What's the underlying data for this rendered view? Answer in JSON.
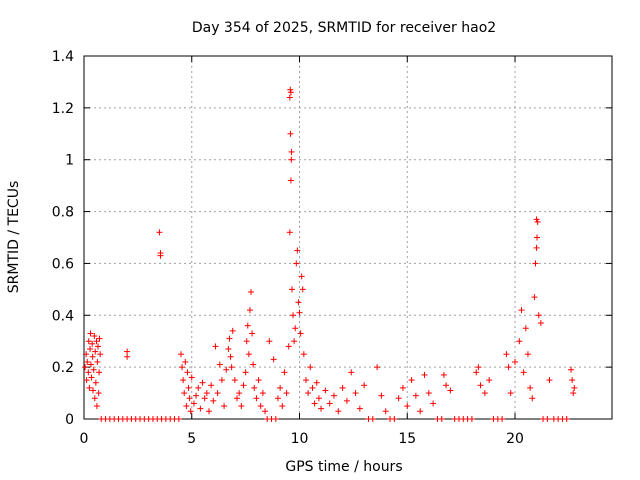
{
  "chart_data": {
    "type": "scatter",
    "title": "Day 354 of 2025, SRMTID for receiver hao2",
    "xlabel": "GPS time / hours",
    "ylabel": "SRMTID / TECUs",
    "xlim": [
      0,
      24.5
    ],
    "ylim": [
      0,
      1.4
    ],
    "xticks": [
      0,
      5,
      10,
      15,
      20
    ],
    "xtick_labels": [
      "0",
      "5",
      "10",
      "15",
      "20"
    ],
    "yticks": [
      0,
      0.2,
      0.4,
      0.6,
      0.8,
      1.0,
      1.2,
      1.4
    ],
    "ytick_labels": [
      "0",
      "0.2",
      "0.4",
      "0.6",
      "0.8",
      "1",
      "1.2",
      "1.4"
    ],
    "grid": true,
    "marker": "plus",
    "color": "#ff0000",
    "series": [
      {
        "name": "hao2",
        "points": [
          [
            0.05,
            0.2
          ],
          [
            0.1,
            0.25
          ],
          [
            0.12,
            0.15
          ],
          [
            0.15,
            0.22
          ],
          [
            0.2,
            0.18
          ],
          [
            0.22,
            0.3
          ],
          [
            0.25,
            0.12
          ],
          [
            0.28,
            0.27
          ],
          [
            0.3,
            0.33
          ],
          [
            0.32,
            0.21
          ],
          [
            0.35,
            0.16
          ],
          [
            0.38,
            0.29
          ],
          [
            0.4,
            0.24
          ],
          [
            0.42,
            0.11
          ],
          [
            0.45,
            0.19
          ],
          [
            0.48,
            0.32
          ],
          [
            0.5,
            0.08
          ],
          [
            0.52,
            0.26
          ],
          [
            0.55,
            0.14
          ],
          [
            0.58,
            0.3
          ],
          [
            0.6,
            0.05
          ],
          [
            0.62,
            0.22
          ],
          [
            0.65,
            0.28
          ],
          [
            0.68,
            0.1
          ],
          [
            0.7,
            0.18
          ],
          [
            0.72,
            0.31
          ],
          [
            0.75,
            0.25
          ],
          [
            0.8,
            0.0
          ],
          [
            1.0,
            0.0
          ],
          [
            1.2,
            0.0
          ],
          [
            1.4,
            0.0
          ],
          [
            1.6,
            0.0
          ],
          [
            1.8,
            0.0
          ],
          [
            2.0,
            0.0
          ],
          [
            2.2,
            0.0
          ],
          [
            2.4,
            0.0
          ],
          [
            2.6,
            0.0
          ],
          [
            2.8,
            0.0
          ],
          [
            3.0,
            0.0
          ],
          [
            3.2,
            0.0
          ],
          [
            3.4,
            0.0
          ],
          [
            3.6,
            0.0
          ],
          [
            3.8,
            0.0
          ],
          [
            4.0,
            0.0
          ],
          [
            4.2,
            0.0
          ],
          [
            4.4,
            0.0
          ],
          [
            2.0,
            0.24
          ],
          [
            2.0,
            0.26
          ],
          [
            3.5,
            0.72
          ],
          [
            3.55,
            0.64
          ],
          [
            3.55,
            0.63
          ],
          [
            4.5,
            0.25
          ],
          [
            4.55,
            0.2
          ],
          [
            4.6,
            0.15
          ],
          [
            4.65,
            0.1
          ],
          [
            4.7,
            0.22
          ],
          [
            4.75,
            0.05
          ],
          [
            4.8,
            0.18
          ],
          [
            4.85,
            0.12
          ],
          [
            4.9,
            0.08
          ],
          [
            4.95,
            0.03
          ],
          [
            5.0,
            0.16
          ],
          [
            5.1,
            0.06
          ],
          [
            5.2,
            0.09
          ],
          [
            5.3,
            0.12
          ],
          [
            5.4,
            0.04
          ],
          [
            5.5,
            0.14
          ],
          [
            5.6,
            0.08
          ],
          [
            5.7,
            0.1
          ],
          [
            5.8,
            0.03
          ],
          [
            5.9,
            0.13
          ],
          [
            6.0,
            0.07
          ],
          [
            6.1,
            0.28
          ],
          [
            6.2,
            0.1
          ],
          [
            6.3,
            0.21
          ],
          [
            6.4,
            0.15
          ],
          [
            6.5,
            0.05
          ],
          [
            6.6,
            0.19
          ],
          [
            6.7,
            0.27
          ],
          [
            6.75,
            0.31
          ],
          [
            6.8,
            0.24
          ],
          [
            6.85,
            0.2
          ],
          [
            6.9,
            0.34
          ],
          [
            7.0,
            0.15
          ],
          [
            7.1,
            0.08
          ],
          [
            7.2,
            0.1
          ],
          [
            7.3,
            0.05
          ],
          [
            7.4,
            0.13
          ],
          [
            7.5,
            0.18
          ],
          [
            7.55,
            0.3
          ],
          [
            7.6,
            0.36
          ],
          [
            7.65,
            0.25
          ],
          [
            7.7,
            0.42
          ],
          [
            7.75,
            0.49
          ],
          [
            7.8,
            0.33
          ],
          [
            7.85,
            0.21
          ],
          [
            7.9,
            0.12
          ],
          [
            8.0,
            0.08
          ],
          [
            8.1,
            0.15
          ],
          [
            8.2,
            0.05
          ],
          [
            8.3,
            0.1
          ],
          [
            8.4,
            0.03
          ],
          [
            8.5,
            0.0
          ],
          [
            8.7,
            0.0
          ],
          [
            8.9,
            0.0
          ],
          [
            8.6,
            0.3
          ],
          [
            8.8,
            0.23
          ],
          [
            9.0,
            0.08
          ],
          [
            9.1,
            0.12
          ],
          [
            9.2,
            0.05
          ],
          [
            9.3,
            0.18
          ],
          [
            9.4,
            0.1
          ],
          [
            9.5,
            0.28
          ],
          [
            9.55,
            0.72
          ],
          [
            9.6,
            0.92
          ],
          [
            9.62,
            1.0
          ],
          [
            9.63,
            1.03
          ],
          [
            9.58,
            1.1
          ],
          [
            9.55,
            1.24
          ],
          [
            9.57,
            1.27
          ],
          [
            9.6,
            1.26
          ],
          [
            9.65,
            0.5
          ],
          [
            9.7,
            0.4
          ],
          [
            9.75,
            0.3
          ],
          [
            9.8,
            0.35
          ],
          [
            9.85,
            0.6
          ],
          [
            9.9,
            0.65
          ],
          [
            9.95,
            0.45
          ],
          [
            10.0,
            0.41
          ],
          [
            10.05,
            0.33
          ],
          [
            10.1,
            0.55
          ],
          [
            10.15,
            0.5
          ],
          [
            10.2,
            0.25
          ],
          [
            10.3,
            0.15
          ],
          [
            10.4,
            0.1
          ],
          [
            10.5,
            0.2
          ],
          [
            10.6,
            0.12
          ],
          [
            10.7,
            0.06
          ],
          [
            10.8,
            0.14
          ],
          [
            10.9,
            0.08
          ],
          [
            11.0,
            0.04
          ],
          [
            11.2,
            0.11
          ],
          [
            11.4,
            0.06
          ],
          [
            11.6,
            0.09
          ],
          [
            11.8,
            0.03
          ],
          [
            12.0,
            0.12
          ],
          [
            12.2,
            0.07
          ],
          [
            12.4,
            0.18
          ],
          [
            12.6,
            0.1
          ],
          [
            12.8,
            0.04
          ],
          [
            13.0,
            0.13
          ],
          [
            13.2,
            0.0
          ],
          [
            13.4,
            0.0
          ],
          [
            13.6,
            0.2
          ],
          [
            13.8,
            0.09
          ],
          [
            14.0,
            0.03
          ],
          [
            14.2,
            0.0
          ],
          [
            14.4,
            0.0
          ],
          [
            14.6,
            0.08
          ],
          [
            14.8,
            0.12
          ],
          [
            15.0,
            0.05
          ],
          [
            15.2,
            0.15
          ],
          [
            15.4,
            0.09
          ],
          [
            15.6,
            0.03
          ],
          [
            15.8,
            0.17
          ],
          [
            16.0,
            0.1
          ],
          [
            16.2,
            0.06
          ],
          [
            16.4,
            0.0
          ],
          [
            16.6,
            0.0
          ],
          [
            16.7,
            0.17
          ],
          [
            16.8,
            0.13
          ],
          [
            17.0,
            0.11
          ],
          [
            17.2,
            0.0
          ],
          [
            17.4,
            0.0
          ],
          [
            17.6,
            0.0
          ],
          [
            17.8,
            0.0
          ],
          [
            18.0,
            0.0
          ],
          [
            18.2,
            0.18
          ],
          [
            18.3,
            0.2
          ],
          [
            18.4,
            0.13
          ],
          [
            18.6,
            0.1
          ],
          [
            18.8,
            0.15
          ],
          [
            19.0,
            0.0
          ],
          [
            19.2,
            0.0
          ],
          [
            19.4,
            0.0
          ],
          [
            19.6,
            0.25
          ],
          [
            19.7,
            0.2
          ],
          [
            19.8,
            0.1
          ],
          [
            20.0,
            0.22
          ],
          [
            20.2,
            0.3
          ],
          [
            20.3,
            0.42
          ],
          [
            20.4,
            0.18
          ],
          [
            20.5,
            0.35
          ],
          [
            20.6,
            0.25
          ],
          [
            20.7,
            0.12
          ],
          [
            20.8,
            0.08
          ],
          [
            20.9,
            0.47
          ],
          [
            20.95,
            0.6
          ],
          [
            21.0,
            0.66
          ],
          [
            21.02,
            0.7
          ],
          [
            21.05,
            0.76
          ],
          [
            21.0,
            0.77
          ],
          [
            21.1,
            0.4
          ],
          [
            21.2,
            0.37
          ],
          [
            21.3,
            0.0
          ],
          [
            21.5,
            0.0
          ],
          [
            21.6,
            0.15
          ],
          [
            21.8,
            0.0
          ],
          [
            22.0,
            0.0
          ],
          [
            22.2,
            0.0
          ],
          [
            22.4,
            0.0
          ],
          [
            22.6,
            0.19
          ],
          [
            22.65,
            0.15
          ],
          [
            22.7,
            0.1
          ],
          [
            22.75,
            0.12
          ]
        ]
      }
    ]
  }
}
